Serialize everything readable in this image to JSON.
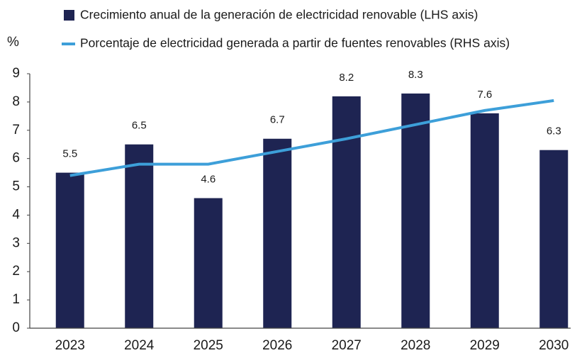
{
  "chart_data": {
    "type": "bar",
    "y_label": "%",
    "categories": [
      "2023",
      "2024",
      "2025",
      "2026",
      "2027",
      "2028",
      "2029",
      "2030"
    ],
    "series": [
      {
        "name": "Crecimiento anual de la generación de electricidad renovable (LHS axis)",
        "type": "bar",
        "color": "#1e2452",
        "values": [
          5.5,
          6.5,
          4.6,
          6.7,
          8.2,
          8.3,
          7.6,
          6.3
        ]
      },
      {
        "name": "Porcentaje de electricidad generada a partir de fuentes renovables (RHS axis)",
        "type": "line",
        "color": "#3d9fd9",
        "values": [
          5.4,
          5.8,
          5.8,
          6.25,
          6.7,
          7.2,
          7.7,
          8.05
        ]
      }
    ],
    "ylim": [
      0,
      9
    ],
    "yticks": [
      0,
      1,
      2,
      3,
      4,
      5,
      6,
      7,
      8,
      9
    ],
    "grid": false
  }
}
